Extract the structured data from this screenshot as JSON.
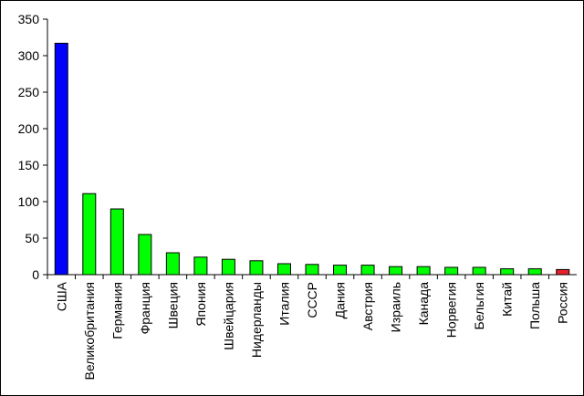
{
  "chart_data": {
    "type": "bar",
    "categories": [
      "США",
      "Великобритания",
      "Германия",
      "Франция",
      "Швеция",
      "Япония",
      "Швейцария",
      "Нидерланды",
      "Италия",
      "СССР",
      "Дания",
      "Австрия",
      "Израиль",
      "Канада",
      "Норвегия",
      "Бельгия",
      "Китай",
      "Польша",
      "Россия"
    ],
    "values": [
      317,
      111,
      90,
      55,
      30,
      24,
      21,
      19,
      15,
      14,
      13,
      13,
      11,
      11,
      10,
      10,
      8,
      8,
      7
    ],
    "colors": [
      "#0000ff",
      "#00ff00",
      "#00ff00",
      "#00ff00",
      "#00ff00",
      "#00ff00",
      "#00ff00",
      "#00ff00",
      "#00ff00",
      "#00ff00",
      "#00ff00",
      "#00ff00",
      "#00ff00",
      "#00ff00",
      "#00ff00",
      "#00ff00",
      "#00ff00",
      "#00ff00",
      "#e8202a"
    ],
    "ylim": [
      0,
      350
    ],
    "yticks": [
      0,
      50,
      100,
      150,
      200,
      250,
      300,
      350
    ],
    "grid": false
  }
}
